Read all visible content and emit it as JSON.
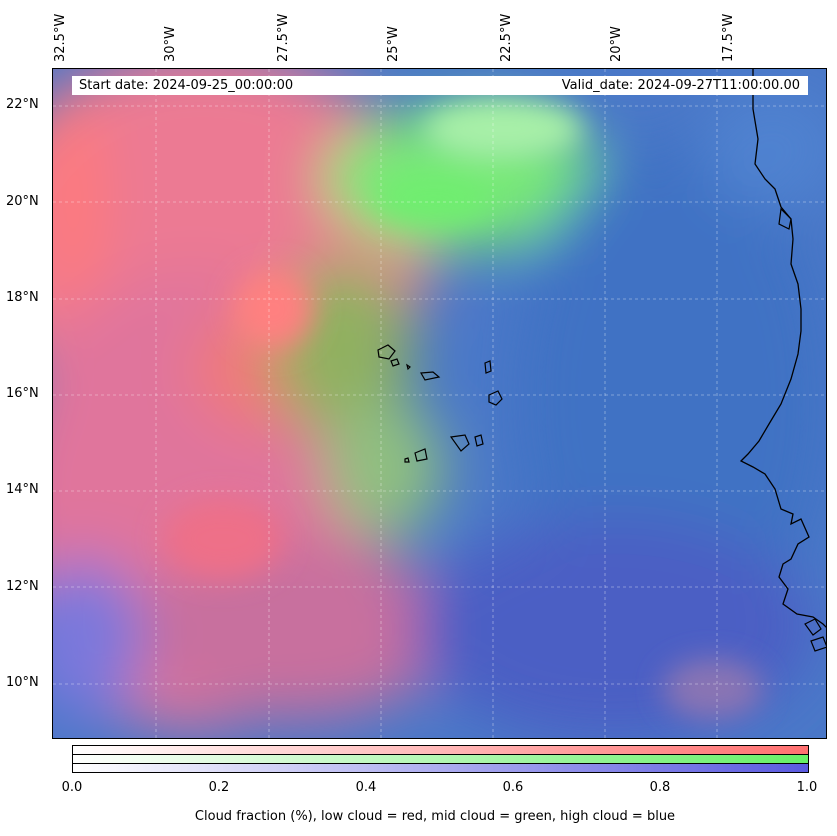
{
  "map": {
    "start_date": "Start date: 2024-09-25_00:00:00",
    "valid_date": "Valid_date: 2024-09-27T11:00:00.00",
    "lon_labels": [
      "32.5°W",
      "30°W",
      "27.5°W",
      "25°W",
      "22.5°W",
      "20°W",
      "17.5°W"
    ],
    "lat_labels": [
      "22°N",
      "20°N",
      "18°N",
      "16°N",
      "14°N",
      "12°N",
      "10°N"
    ],
    "channel_colors": {
      "low_cloud": "#ff7070",
      "mid_cloud": "#66f066",
      "high_cloud": "#5a5ae0",
      "background": "#4a78c8"
    },
    "coastline_color": "#000000"
  },
  "colorbar": {
    "ticks": [
      "0.0",
      "0.2",
      "0.4",
      "0.6",
      "0.8",
      "1.0"
    ],
    "tick_values": [
      0.0,
      0.2,
      0.4,
      0.6,
      0.8,
      1.0
    ],
    "range": [
      0.0,
      1.0
    ],
    "caption": "Cloud fraction (%), low cloud = red, mid cloud = green, high cloud = blue",
    "rows": [
      {
        "name": "low cloud",
        "color": "#ff7070"
      },
      {
        "name": "mid cloud",
        "color": "#66f066"
      },
      {
        "name": "high cloud",
        "color": "#5a5ae0"
      }
    ]
  }
}
